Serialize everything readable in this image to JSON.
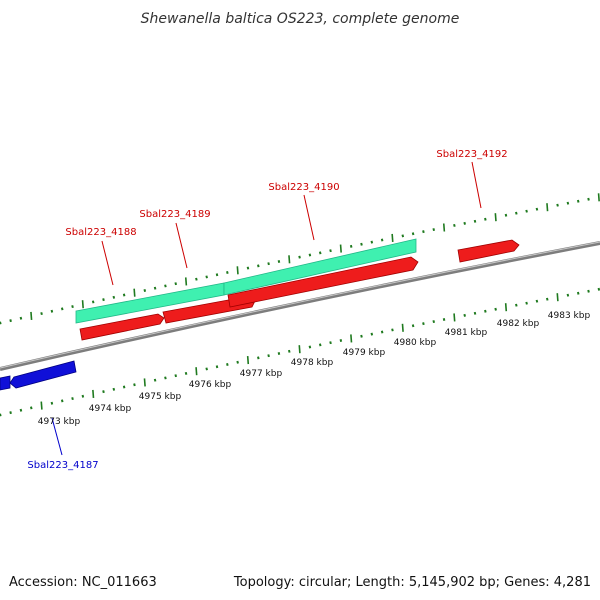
{
  "title": "Shewanella baltica OS223, complete genome",
  "accession": "Accession: NC_011663",
  "summary": "Topology: circular; Length: 5,145,902 bp; Genes: 4,281",
  "colors": {
    "backbone": "#7d7d7d",
    "tick": "#1f7a1f",
    "cds_forward": "#ee1c1c",
    "cds_reverse": "#1010d8",
    "rna": "#3ff0b0",
    "label_forward": "#cc0000",
    "label_reverse": "#0000cc"
  },
  "scale_labels": [
    "4973 kbp",
    "4974 kbp",
    "4975 kbp",
    "4976 kbp",
    "4977 kbp",
    "4978 kbp",
    "4979 kbp",
    "4980 kbp",
    "4981 kbp",
    "4982 kbp",
    "4983 kbp"
  ],
  "gene_labels": [
    {
      "name": "Sbal223_4187",
      "strand": "reverse"
    },
    {
      "name": "Sbal223_4188",
      "strand": "forward"
    },
    {
      "name": "Sbal223_4189",
      "strand": "forward"
    },
    {
      "name": "Sbal223_4190",
      "strand": "forward"
    },
    {
      "name": "Sbal223_4192",
      "strand": "forward"
    }
  ]
}
